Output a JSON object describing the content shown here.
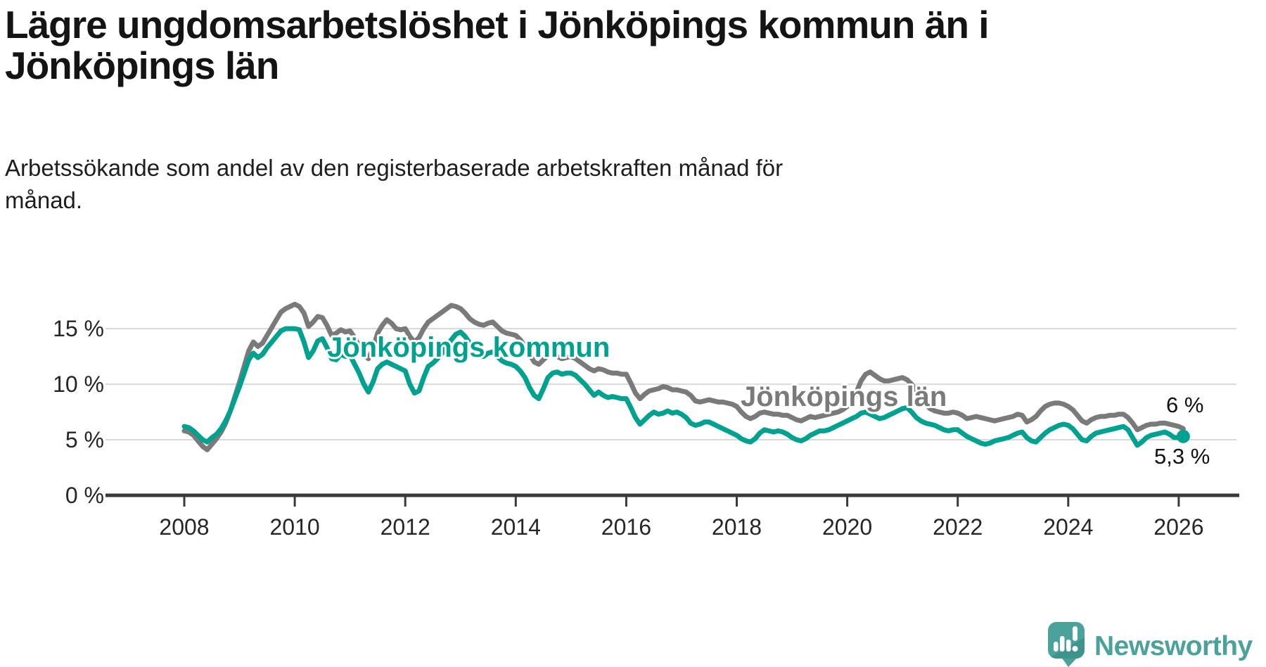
{
  "title": "Lägre ungdomsarbetslöshet i Jönköpings kommun än i\nJönköpings län",
  "subtitle": "Arbetssökande som andel av den registerbaserade arbetskraften månad för\nmånad.",
  "branding": {
    "logo_text": "Newsworthy",
    "logo_color": "#4ba29b",
    "logo_shadow_color": "#3f938d"
  },
  "chart_data": {
    "type": "line",
    "title": "Lägre ungdomsarbetslöshet i Jönköpings kommun än i Jönköpings län",
    "subtitle": "Arbetssökande som andel av den registerbaserade arbetskraften månad för månad.",
    "x_unit": "month",
    "x_range": [
      "2008-01",
      "2026-02"
    ],
    "ylim": [
      0,
      18
    ],
    "grid": "horizontal",
    "legend_position": "inline-labels",
    "x_ticks": [
      2008,
      2010,
      2012,
      2014,
      2016,
      2018,
      2020,
      2022,
      2024,
      2026
    ],
    "y_ticks": [
      {
        "value": 0,
        "label": "0 %"
      },
      {
        "value": 5,
        "label": "5 %"
      },
      {
        "value": 10,
        "label": "10 %"
      },
      {
        "value": 15,
        "label": "15 %"
      }
    ],
    "series": [
      {
        "name": "Jönköpings län",
        "color": "#7a7a7a",
        "end_label": "6 %",
        "end_dot": false,
        "values": [
          5.8,
          5.7,
          5.4,
          4.9,
          4.4,
          4.1,
          4.6,
          5.1,
          5.7,
          6.5,
          7.6,
          8.9,
          10.2,
          11.6,
          13.0,
          13.8,
          13.4,
          13.7,
          14.4,
          15.1,
          15.8,
          16.5,
          16.8,
          17.0,
          17.2,
          17.0,
          16.4,
          15.2,
          15.6,
          16.1,
          16.0,
          15.3,
          14.4,
          14.6,
          14.9,
          14.7,
          14.8,
          14.2,
          13.4,
          12.7,
          12.3,
          13.2,
          14.6,
          15.3,
          15.8,
          15.5,
          15.0,
          14.9,
          15.0,
          14.3,
          13.8,
          14.2,
          15.0,
          15.6,
          15.9,
          16.2,
          16.5,
          16.8,
          17.1,
          17.0,
          16.8,
          16.4,
          15.9,
          15.6,
          15.4,
          15.3,
          15.5,
          15.6,
          15.2,
          14.8,
          14.6,
          14.5,
          14.4,
          14.0,
          13.4,
          12.7,
          12.0,
          11.8,
          12.2,
          12.6,
          12.7,
          12.5,
          12.3,
          12.4,
          12.5,
          12.3,
          12.0,
          11.7,
          11.4,
          11.2,
          11.4,
          11.3,
          11.1,
          11.0,
          11.0,
          10.9,
          10.9,
          10.1,
          9.2,
          8.7,
          9.1,
          9.4,
          9.5,
          9.6,
          9.8,
          9.7,
          9.5,
          9.5,
          9.4,
          9.3,
          9.0,
          8.5,
          8.4,
          8.5,
          8.6,
          8.5,
          8.4,
          8.4,
          8.3,
          8.2,
          8.0,
          7.5,
          7.1,
          6.9,
          7.1,
          7.4,
          7.5,
          7.4,
          7.3,
          7.3,
          7.2,
          7.2,
          7.0,
          6.8,
          6.7,
          6.9,
          7.1,
          7.0,
          7.1,
          7.2,
          7.3,
          7.4,
          7.5,
          7.7,
          8.0,
          8.4,
          9.3,
          10.3,
          10.9,
          11.1,
          10.8,
          10.5,
          10.3,
          10.3,
          10.4,
          10.5,
          10.6,
          10.4,
          10.0,
          9.3,
          8.7,
          8.2,
          7.8,
          7.6,
          7.5,
          7.4,
          7.4,
          7.5,
          7.4,
          7.2,
          6.9,
          7.0,
          7.1,
          7.0,
          6.9,
          6.8,
          6.7,
          6.8,
          6.9,
          7.0,
          7.1,
          7.3,
          7.2,
          6.6,
          6.8,
          7.1,
          7.6,
          8.0,
          8.2,
          8.3,
          8.3,
          8.2,
          8.0,
          7.7,
          7.2,
          6.7,
          6.5,
          6.8,
          7.0,
          7.1,
          7.1,
          7.2,
          7.2,
          7.3,
          7.3,
          7.0,
          6.5,
          5.9,
          6.1,
          6.3,
          6.4,
          6.4,
          6.5,
          6.5,
          6.4,
          6.3,
          6.2,
          6.0
        ]
      },
      {
        "name": "Jönköpings kommun",
        "color": "#00a18f",
        "end_label": "5,3 %",
        "end_dot": true,
        "values": [
          6.2,
          6.1,
          5.8,
          5.4,
          5.0,
          4.8,
          5.2,
          5.5,
          6.0,
          6.7,
          7.6,
          8.7,
          9.8,
          11.0,
          12.2,
          12.8,
          12.4,
          12.7,
          13.3,
          13.8,
          14.3,
          14.8,
          15.0,
          15.0,
          15.0,
          14.9,
          13.8,
          12.4,
          13.0,
          13.9,
          14.1,
          13.3,
          12.3,
          12.2,
          12.7,
          12.5,
          12.6,
          11.8,
          11.0,
          10.0,
          9.3,
          10.2,
          11.4,
          11.8,
          12.0,
          11.8,
          11.6,
          11.4,
          11.2,
          10.0,
          9.2,
          9.4,
          10.6,
          11.6,
          11.9,
          12.3,
          12.8,
          13.4,
          14.0,
          14.5,
          14.7,
          14.3,
          13.7,
          13.0,
          12.6,
          12.5,
          12.8,
          12.9,
          12.5,
          12.1,
          11.9,
          11.8,
          11.6,
          11.2,
          10.6,
          9.7,
          9.0,
          8.7,
          9.6,
          10.6,
          11.0,
          11.1,
          10.9,
          11.0,
          11.0,
          10.8,
          10.4,
          10.0,
          9.5,
          9.0,
          9.3,
          9.0,
          8.8,
          8.9,
          8.8,
          8.7,
          8.7,
          7.9,
          7.0,
          6.4,
          6.8,
          7.2,
          7.5,
          7.3,
          7.4,
          7.6,
          7.4,
          7.5,
          7.3,
          7.0,
          6.5,
          6.3,
          6.4,
          6.6,
          6.6,
          6.4,
          6.2,
          6.0,
          5.8,
          5.6,
          5.4,
          5.1,
          4.9,
          4.8,
          5.1,
          5.6,
          5.9,
          5.8,
          5.7,
          5.8,
          5.7,
          5.5,
          5.2,
          5.0,
          4.9,
          5.1,
          5.4,
          5.6,
          5.8,
          5.8,
          5.9,
          6.1,
          6.3,
          6.5,
          6.7,
          6.9,
          7.1,
          7.4,
          7.5,
          7.3,
          7.1,
          6.9,
          7.0,
          7.2,
          7.4,
          7.6,
          7.8,
          7.9,
          7.5,
          7.0,
          6.7,
          6.5,
          6.4,
          6.3,
          6.1,
          5.9,
          5.8,
          5.9,
          5.9,
          5.6,
          5.3,
          5.1,
          4.9,
          4.7,
          4.6,
          4.7,
          4.9,
          5.0,
          5.1,
          5.2,
          5.4,
          5.6,
          5.7,
          5.2,
          4.9,
          4.8,
          5.2,
          5.6,
          5.9,
          6.1,
          6.3,
          6.4,
          6.3,
          6.0,
          5.5,
          5.0,
          4.9,
          5.3,
          5.6,
          5.7,
          5.8,
          5.9,
          6.0,
          6.1,
          6.2,
          5.9,
          5.2,
          4.5,
          4.8,
          5.2,
          5.4,
          5.5,
          5.6,
          5.7,
          5.5,
          5.2,
          5.2,
          5.3
        ]
      }
    ]
  }
}
